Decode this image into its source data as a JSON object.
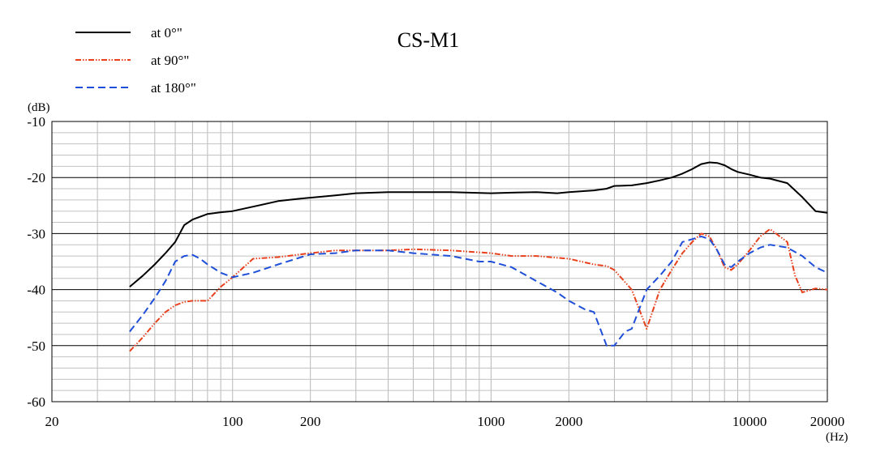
{
  "chart_data": {
    "type": "line",
    "title": "CS-M1",
    "xlabel": "(Hz)",
    "ylabel": "(dB)",
    "xscale": "log",
    "xlim": [
      20,
      20000
    ],
    "ylim": [
      -60,
      -10
    ],
    "grid": true,
    "legend_position": "top-left",
    "x_tick_labels": [
      "20",
      "100",
      "200",
      "1000",
      "2000",
      "10000",
      "20000"
    ],
    "x_tick_values": [
      20,
      100,
      200,
      1000,
      2000,
      10000,
      20000
    ],
    "y_tick_labels": [
      "-10",
      "-20",
      "-30",
      "-40",
      "-50",
      "-60"
    ],
    "y_tick_values": [
      -10,
      -20,
      -30,
      -40,
      -50,
      -60
    ],
    "series": [
      {
        "name": "at 0°\"",
        "color": "#000000",
        "style": "solid",
        "x": [
          40,
          45,
          50,
          55,
          60,
          65,
          70,
          80,
          90,
          100,
          120,
          150,
          180,
          200,
          250,
          300,
          400,
          500,
          700,
          1000,
          1200,
          1500,
          1800,
          2000,
          2500,
          2800,
          3000,
          3500,
          4000,
          4500,
          5000,
          5500,
          6000,
          6500,
          7000,
          7500,
          8000,
          8500,
          9000,
          10000,
          11000,
          12000,
          14000,
          16000,
          18000,
          20000
        ],
        "values": [
          -39.5,
          -37.5,
          -35.5,
          -33.5,
          -31.5,
          -28.5,
          -27.5,
          -26.5,
          -26.2,
          -26.0,
          -25.2,
          -24.2,
          -23.8,
          -23.6,
          -23.2,
          -22.8,
          -22.6,
          -22.6,
          -22.6,
          -22.8,
          -22.7,
          -22.6,
          -22.8,
          -22.6,
          -22.3,
          -22.0,
          -21.5,
          -21.4,
          -21.0,
          -20.5,
          -20.0,
          -19.3,
          -18.5,
          -17.6,
          -17.3,
          -17.4,
          -17.8,
          -18.5,
          -19.0,
          -19.5,
          -20.0,
          -20.2,
          -21.0,
          -23.5,
          -26.0,
          -26.3
        ]
      },
      {
        "name": "at 90°\"",
        "color": "#e8401c",
        "style": "dash-dot-dot",
        "x": [
          40,
          45,
          50,
          55,
          60,
          65,
          70,
          80,
          90,
          100,
          120,
          150,
          200,
          250,
          300,
          400,
          500,
          700,
          1000,
          1200,
          1500,
          2000,
          2500,
          2800,
          3000,
          3500,
          4000,
          4500,
          5000,
          5500,
          6000,
          6500,
          7000,
          7500,
          8000,
          8500,
          9000,
          10000,
          11000,
          12000,
          14000,
          15000,
          16000,
          18000,
          20000
        ],
        "values": [
          -51,
          -48.5,
          -46,
          -44,
          -42.8,
          -42.2,
          -42.0,
          -42.0,
          -39.5,
          -37.8,
          -34.5,
          -34.2,
          -33.5,
          -33.0,
          -33.0,
          -33.0,
          -32.8,
          -33.0,
          -33.5,
          -34.0,
          -34.0,
          -34.5,
          -35.5,
          -35.8,
          -36.5,
          -40.0,
          -47.0,
          -40.0,
          -36.5,
          -33.5,
          -31.5,
          -30.0,
          -30.5,
          -33.0,
          -36.0,
          -36.5,
          -35.5,
          -33.0,
          -30.5,
          -29.2,
          -31.5,
          -37.5,
          -40.5,
          -39.8,
          -40.0
        ]
      },
      {
        "name": "at 180°\"",
        "color": "#1f4fd8",
        "style": "dashed",
        "x": [
          40,
          45,
          50,
          55,
          60,
          65,
          70,
          75,
          80,
          90,
          100,
          120,
          150,
          200,
          250,
          300,
          400,
          500,
          700,
          900,
          1000,
          1200,
          1500,
          1800,
          2000,
          2300,
          2500,
          2800,
          3000,
          3300,
          3500,
          4000,
          4500,
          5000,
          5500,
          6000,
          6500,
          7000,
          7500,
          8000,
          8500,
          9000,
          10000,
          11000,
          12000,
          14000,
          16000,
          18000,
          20000
        ],
        "values": [
          -47.5,
          -44.5,
          -41.5,
          -38.5,
          -35.0,
          -34.0,
          -33.8,
          -34.5,
          -35.5,
          -37.0,
          -37.8,
          -37.0,
          -35.5,
          -33.7,
          -33.5,
          -33.0,
          -33.0,
          -33.5,
          -34.0,
          -35.0,
          -35.0,
          -36.0,
          -38.5,
          -40.5,
          -42.0,
          -43.5,
          -44.0,
          -50.0,
          -50.0,
          -47.5,
          -47.0,
          -40.0,
          -37.5,
          -35.0,
          -31.5,
          -31.0,
          -30.5,
          -31.0,
          -33.0,
          -35.5,
          -36.0,
          -35.0,
          -33.5,
          -32.5,
          -32.0,
          -32.5,
          -34.0,
          -36.0,
          -37.0
        ]
      }
    ]
  }
}
